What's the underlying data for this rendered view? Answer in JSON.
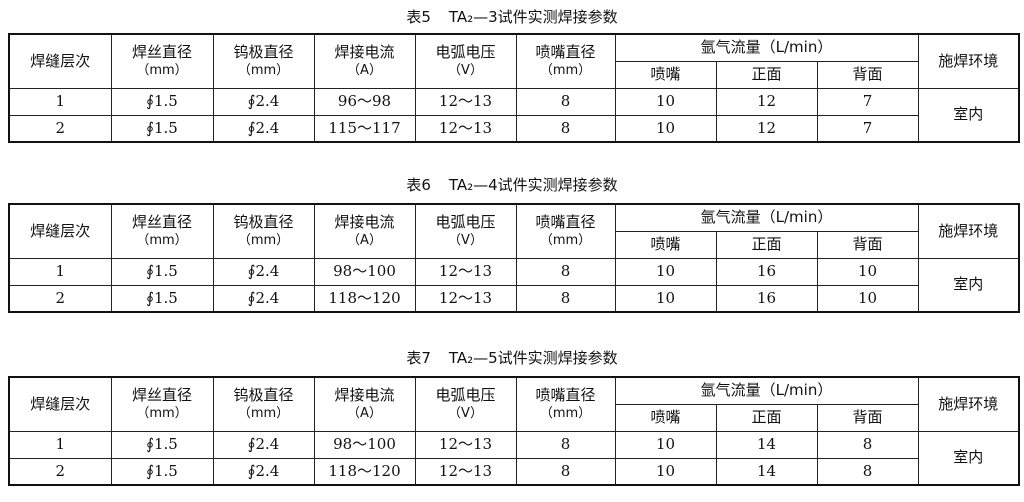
{
  "headers": {
    "layer": "焊缝层次",
    "wire": "焊丝直径",
    "wire_unit": "（mm）",
    "electrode": "钨极直径",
    "electrode_unit": "（mm）",
    "current": "焊接电流",
    "current_unit": "（A）",
    "voltage": "电弧电压",
    "voltage_unit": "（V）",
    "nozzle": "喷嘴直径",
    "nozzle_unit": "（mm）",
    "argon": "氩气流量（L/min）",
    "argon_nozzle": "喷嘴",
    "argon_front": "正面",
    "argon_back": "背面",
    "environment": "施焊环境"
  },
  "tables": [
    {
      "caption_prefix": "表5",
      "caption": "TA₂—3试件实测焊接参数",
      "environment": "室内",
      "rows": [
        {
          "layer": "1",
          "wire": "∮1.5",
          "electrode": "∮2.4",
          "current": "96～98",
          "voltage": "12～13",
          "nozzle": "8",
          "argon_nozzle": "10",
          "argon_front": "12",
          "argon_back": "7"
        },
        {
          "layer": "2",
          "wire": "∮1.5",
          "electrode": "∮2.4",
          "current": "115～117",
          "voltage": "12～13",
          "nozzle": "8",
          "argon_nozzle": "10",
          "argon_front": "12",
          "argon_back": "7"
        }
      ]
    },
    {
      "caption_prefix": "表6",
      "caption": "TA₂—4试件实测焊接参数",
      "environment": "室内",
      "rows": [
        {
          "layer": "1",
          "wire": "∮1.5",
          "electrode": "∮2.4",
          "current": "98～100",
          "voltage": "12～13",
          "nozzle": "8",
          "argon_nozzle": "10",
          "argon_front": "16",
          "argon_back": "10"
        },
        {
          "layer": "2",
          "wire": "∮1.5",
          "electrode": "∮2.4",
          "current": "118～120",
          "voltage": "12～13",
          "nozzle": "8",
          "argon_nozzle": "10",
          "argon_front": "16",
          "argon_back": "10"
        }
      ]
    },
    {
      "caption_prefix": "表7",
      "caption": "TA₂—5试件实测焊接参数",
      "environment": "室内",
      "rows": [
        {
          "layer": "1",
          "wire": "∮1.5",
          "electrode": "∮2.4",
          "current": "98～100",
          "voltage": "12～13",
          "nozzle": "8",
          "argon_nozzle": "10",
          "argon_front": "14",
          "argon_back": "8"
        },
        {
          "layer": "2",
          "wire": "∮1.5",
          "electrode": "∮2.4",
          "current": "118～120",
          "voltage": "12～13",
          "nozzle": "8",
          "argon_nozzle": "10",
          "argon_front": "14",
          "argon_back": "8"
        }
      ]
    }
  ]
}
